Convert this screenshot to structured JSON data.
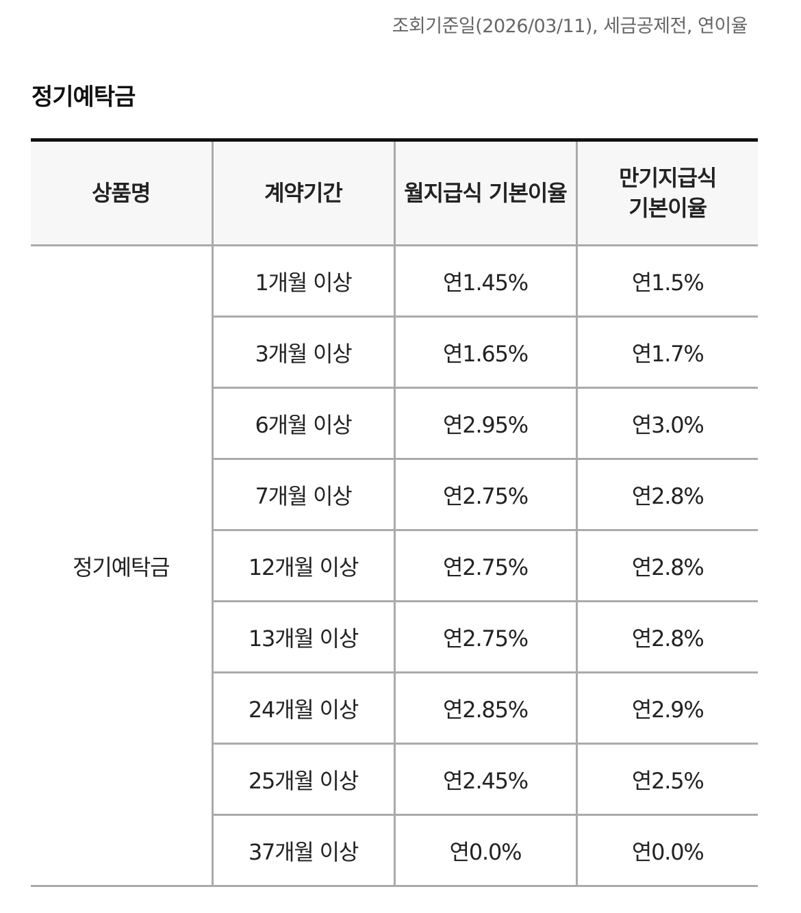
{
  "header": {
    "note": "조회기준일(2026/03/11), 세금공제전, 연이율",
    "section_title": "정기예탁금"
  },
  "table": {
    "columns": [
      "상품명",
      "계약기간",
      "월지급식 기본이율",
      "만기지급식 기본이율"
    ],
    "product_name": "정기예탁금",
    "rows": [
      {
        "period": "1개월 이상",
        "monthly": "연1.45%",
        "maturity": "연1.5%"
      },
      {
        "period": "3개월 이상",
        "monthly": "연1.65%",
        "maturity": "연1.7%"
      },
      {
        "period": "6개월 이상",
        "monthly": "연2.95%",
        "maturity": "연3.0%"
      },
      {
        "period": "7개월 이상",
        "monthly": "연2.75%",
        "maturity": "연2.8%"
      },
      {
        "period": "12개월 이상",
        "monthly": "연2.75%",
        "maturity": "연2.8%"
      },
      {
        "period": "13개월 이상",
        "monthly": "연2.75%",
        "maturity": "연2.8%"
      },
      {
        "period": "24개월 이상",
        "monthly": "연2.85%",
        "maturity": "연2.9%"
      },
      {
        "period": "25개월 이상",
        "monthly": "연2.45%",
        "maturity": "연2.5%"
      },
      {
        "period": "37개월 이상",
        "monthly": "연0.0%",
        "maturity": "연0.0%"
      }
    ]
  }
}
